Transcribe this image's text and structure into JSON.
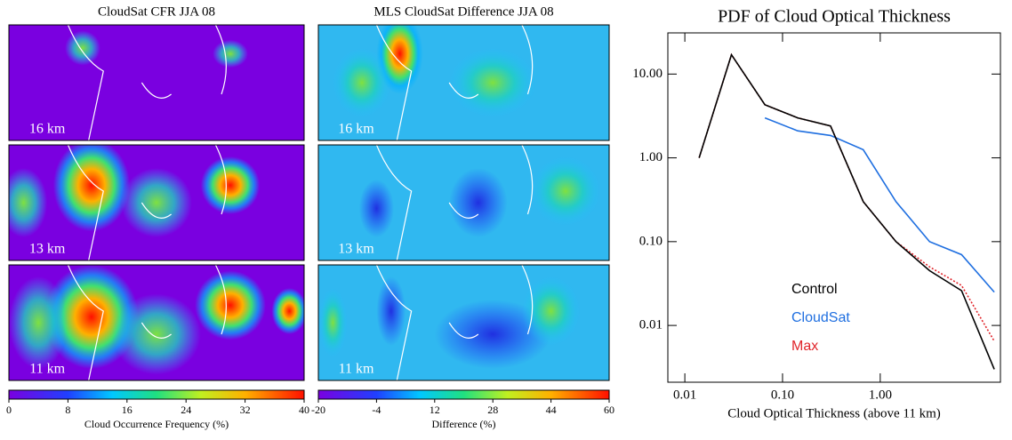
{
  "chart_data": [
    {
      "type": "map",
      "title": "CloudSat  CFR  JJA 08",
      "panels": [
        "16 km",
        "13 km",
        "11 km"
      ],
      "clim": [
        0,
        40
      ],
      "cticks": [
        0,
        8,
        16,
        24,
        32,
        40
      ],
      "clabel": "Cloud Occurrence Frequency (%)"
    },
    {
      "type": "map",
      "title": "MLS CloudSat Difference  JJA 08",
      "panels": [
        "16 km",
        "13 km",
        "11 km"
      ],
      "clim": [
        -20,
        60
      ],
      "cticks": [
        -20,
        -4,
        12,
        28,
        44,
        60
      ],
      "clabel": "Difference (%)"
    },
    {
      "type": "line",
      "title": "PDF of Cloud Optical Thickness",
      "xlabel": "Cloud Optical Thickness (above 11 km)",
      "log_x": true,
      "log_y": true,
      "x": [
        0.014,
        0.03,
        0.066,
        0.143,
        0.31,
        0.67,
        1.45,
        3.2,
        6.8,
        14.7
      ],
      "xlim": [
        0.0067,
        17
      ],
      "ylim": [
        0.0021,
        31
      ],
      "xticks": [
        {
          "value": 0.01,
          "label": "0.01"
        },
        {
          "value": 0.1,
          "label": "0.10"
        },
        {
          "value": 1,
          "label": "1.00"
        }
      ],
      "yticks": [
        {
          "value": 0.01,
          "label": "0.01"
        },
        {
          "value": 0.1,
          "label": "0.10"
        },
        {
          "value": 1,
          "label": "1.00"
        },
        {
          "value": 10,
          "label": "10.00"
        }
      ],
      "series": [
        {
          "name": "CloudSat",
          "color": "#1f6fe0",
          "dash": false,
          "values": [
            null,
            null,
            3.0,
            2.1,
            1.85,
            1.25,
            0.3,
            0.1,
            0.07,
            0.025
          ]
        },
        {
          "name": "Max",
          "color": "#e0242a",
          "dash": true,
          "values": [
            1.0,
            17,
            4.3,
            3.0,
            2.4,
            0.3,
            0.1,
            0.05,
            0.03,
            0.0065
          ]
        },
        {
          "name": "Control",
          "color": "#000000",
          "dash": false,
          "values": [
            1.0,
            17,
            4.3,
            3.0,
            2.4,
            0.3,
            0.1,
            0.045,
            0.026,
            0.003
          ]
        }
      ]
    }
  ]
}
